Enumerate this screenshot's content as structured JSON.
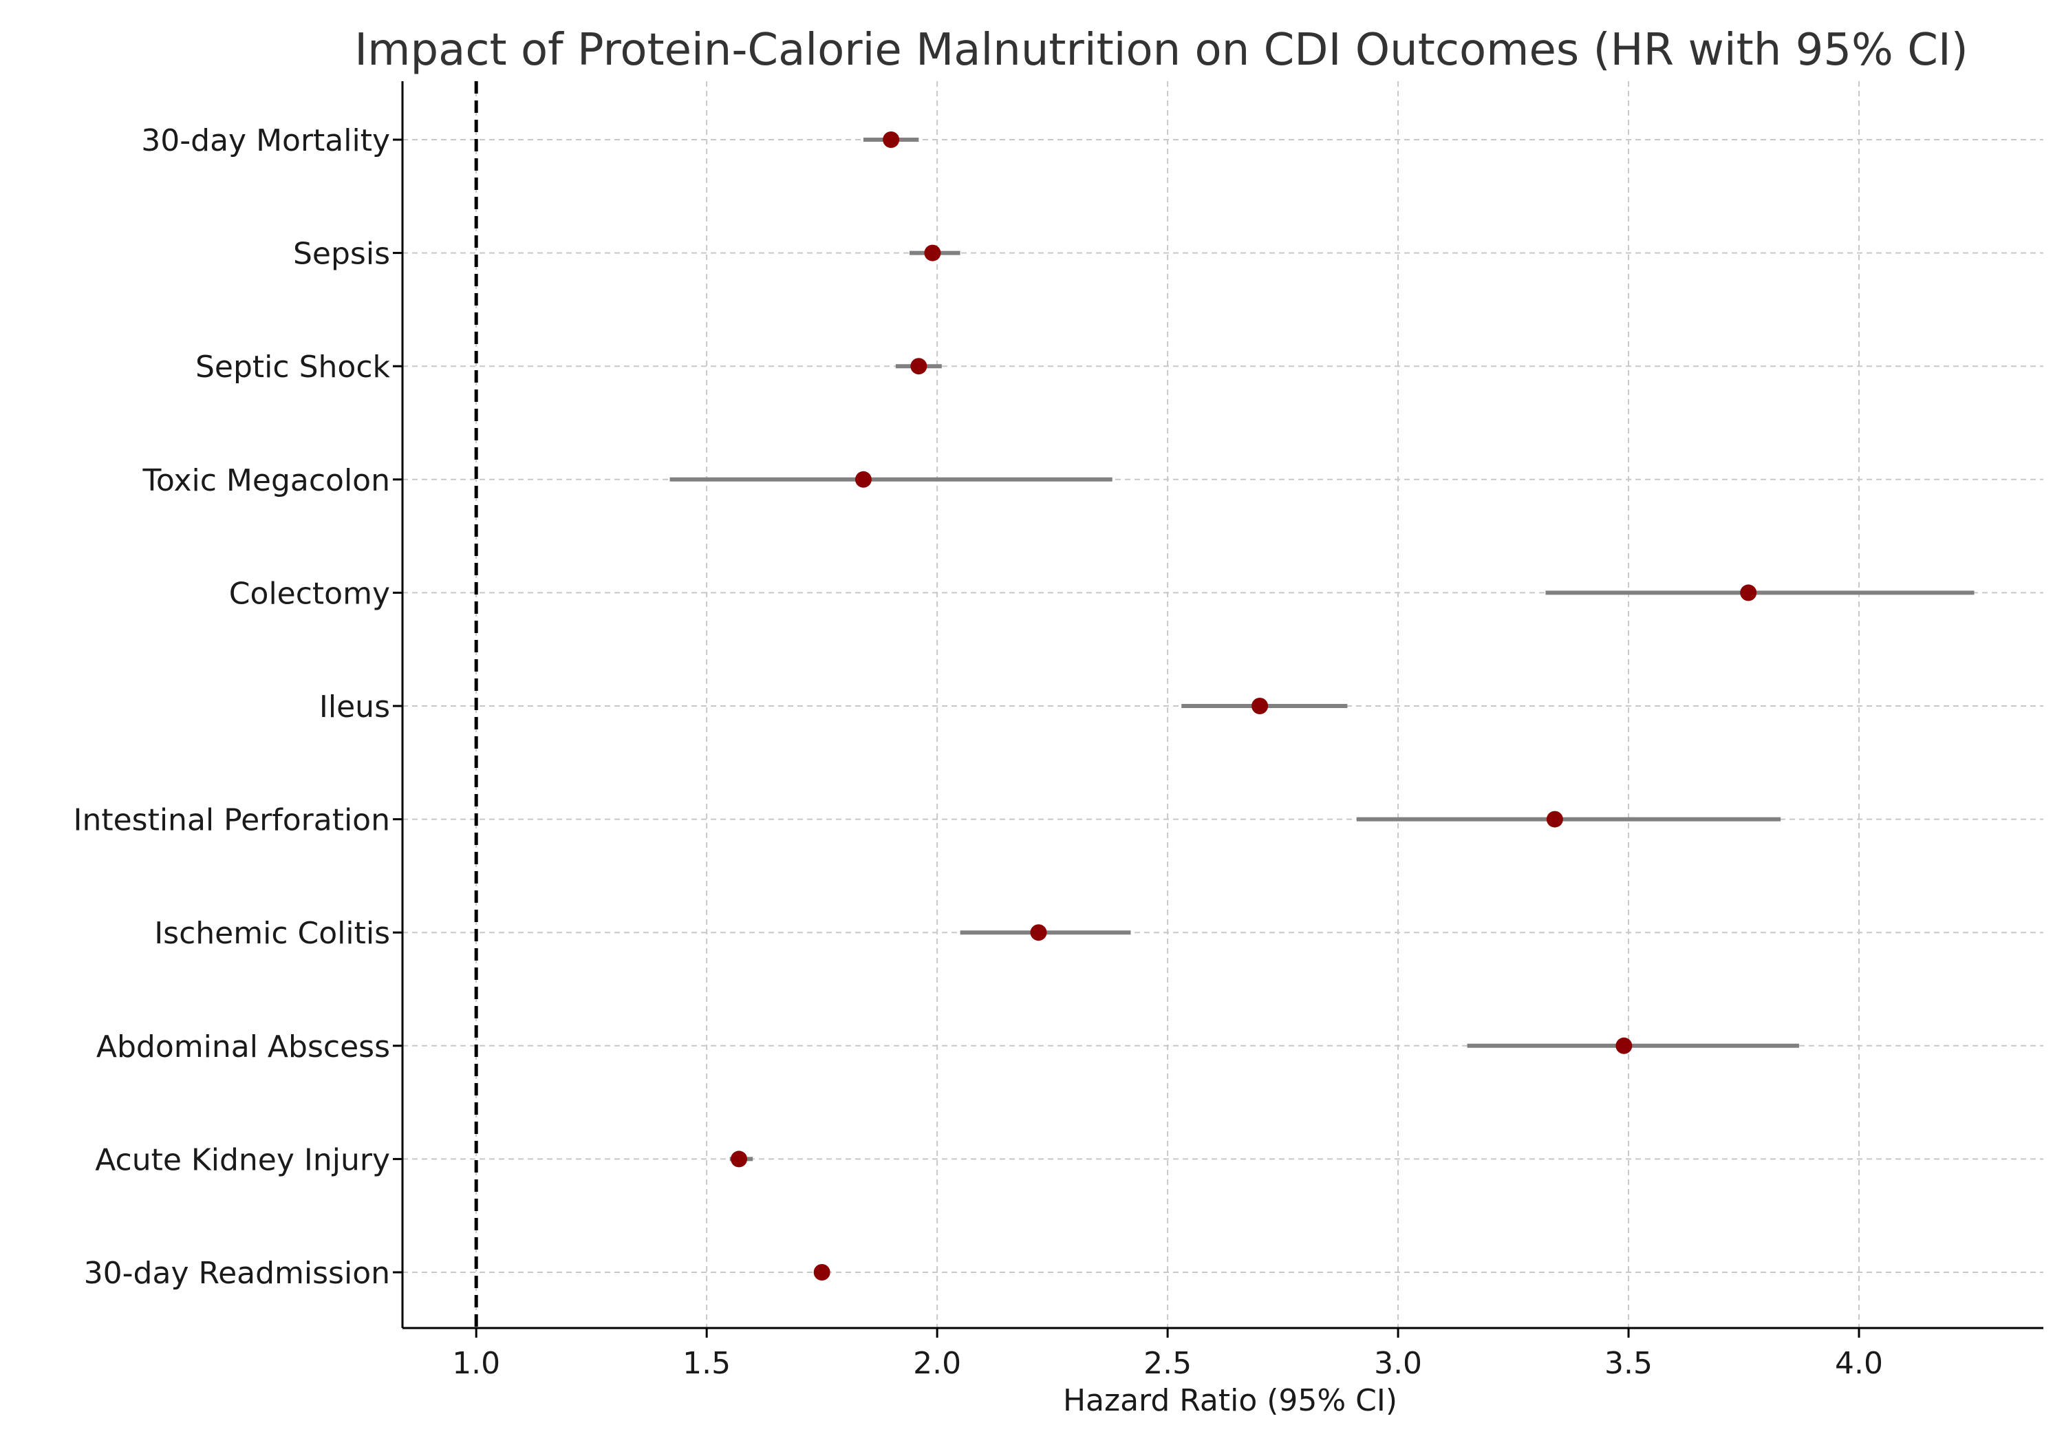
{
  "chart_data": {
    "type": "scatter",
    "subtype": "forest-plot",
    "title": "Impact of Protein-Calorie Malnutrition on CDI Outcomes (HR with 95% CI)",
    "xlabel": "Hazard Ratio (95% CI)",
    "ylabel": "",
    "xlim": [
      0.84,
      4.4
    ],
    "xticks": [
      "1.0",
      "1.5",
      "2.0",
      "2.5",
      "3.0",
      "3.5",
      "4.0"
    ],
    "xtick_values": [
      1.0,
      1.5,
      2.0,
      2.5,
      3.0,
      3.5,
      4.0
    ],
    "reference_line": 1.0,
    "grid": true,
    "point_color": "#8b0000",
    "ci_color": "#808080",
    "outcomes": [
      {
        "label": "30-day Mortality",
        "hr": 1.9,
        "lower": 1.84,
        "upper": 1.96
      },
      {
        "label": "Sepsis",
        "hr": 1.99,
        "lower": 1.94,
        "upper": 2.05
      },
      {
        "label": "Septic Shock",
        "hr": 1.96,
        "lower": 1.91,
        "upper": 2.01
      },
      {
        "label": "Toxic Megacolon",
        "hr": 1.84,
        "lower": 1.42,
        "upper": 2.38
      },
      {
        "label": "Colectomy",
        "hr": 3.76,
        "lower": 3.32,
        "upper": 4.25
      },
      {
        "label": "Ileus",
        "hr": 2.7,
        "lower": 2.53,
        "upper": 2.89
      },
      {
        "label": "Intestinal Perforation",
        "hr": 3.34,
        "lower": 2.91,
        "upper": 3.83
      },
      {
        "label": "Ischemic Colitis",
        "hr": 2.22,
        "lower": 2.05,
        "upper": 2.42
      },
      {
        "label": "Abdominal Abscess",
        "hr": 3.49,
        "lower": 3.15,
        "upper": 3.87
      },
      {
        "label": "Acute Kidney Injury",
        "hr": 1.57,
        "lower": 1.55,
        "upper": 1.6
      },
      {
        "label": "30-day Readmission",
        "hr": 1.75,
        "lower": 1.74,
        "upper": 1.76
      }
    ]
  }
}
